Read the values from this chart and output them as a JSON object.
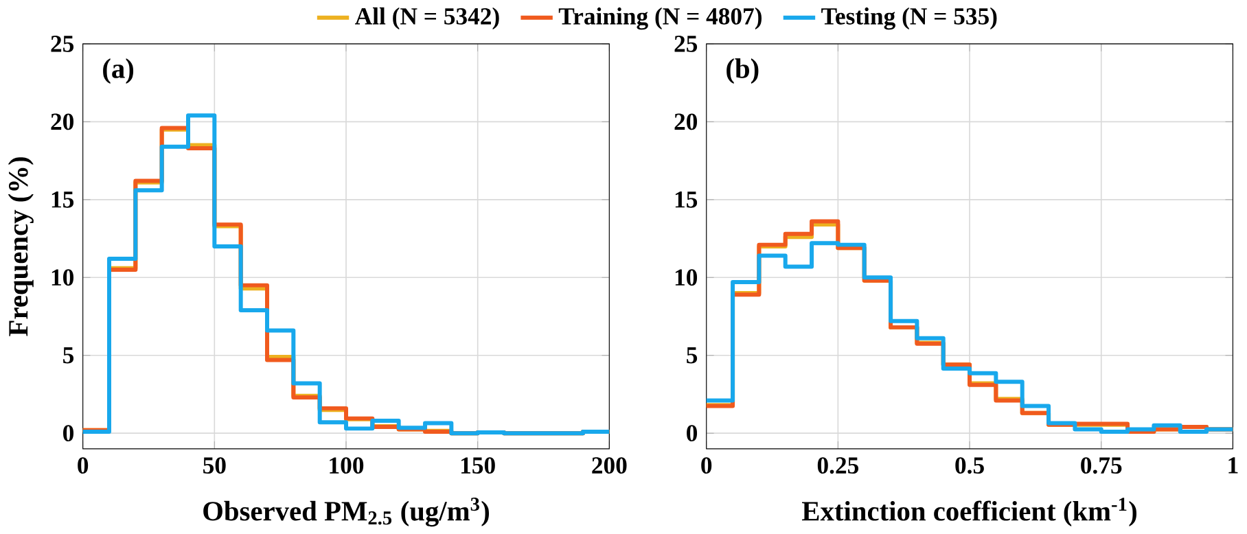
{
  "chart_data": [
    {
      "type": "histogram",
      "xlabel": "Observed PM$_{2.5}$ (ug/m$^{3}$)",
      "ylabel": "Frequency  (%)",
      "annotations": [
        "(a)"
      ],
      "bins": [
        0,
        10,
        20,
        30,
        40,
        50,
        60,
        70,
        80,
        90,
        100,
        110,
        120,
        130,
        140,
        150,
        160,
        170,
        180,
        190,
        200
      ],
      "series": [
        {
          "name": "All  (N = 5342)",
          "color": "#edb120",
          "values": [
            0.2,
            10.6,
            16.1,
            19.5,
            18.5,
            13.3,
            9.3,
            4.9,
            2.4,
            1.5,
            0.9,
            0.45,
            0.25,
            0.15,
            0,
            0.05,
            0,
            0,
            0,
            0.1
          ]
        },
        {
          "name": "Training  (N = 4807)",
          "color": "#f05a1e",
          "values": [
            0.2,
            10.5,
            16.2,
            19.6,
            18.3,
            13.4,
            9.5,
            4.7,
            2.3,
            1.6,
            0.95,
            0.4,
            0.25,
            0.1,
            0,
            0.05,
            0,
            0,
            0,
            0.1
          ]
        },
        {
          "name": "Testing  (N = 535)",
          "color": "#18a8ec",
          "values": [
            0.1,
            11.2,
            15.6,
            18.4,
            20.4,
            12.0,
            7.9,
            6.6,
            3.2,
            0.7,
            0.3,
            0.8,
            0.35,
            0.65,
            0,
            0.05,
            0,
            0,
            0,
            0.1
          ]
        }
      ],
      "xlim": [
        0,
        200
      ],
      "xticks": [
        0,
        50,
        100,
        150,
        200
      ],
      "ylim": [
        -1,
        25
      ],
      "yticks": [
        0,
        5,
        10,
        15,
        20,
        25
      ],
      "grid": true,
      "legend": "top"
    },
    {
      "type": "histogram",
      "xlabel": "Extinction coefficient (km$^{-1}$)",
      "annotations": [
        "(b)"
      ],
      "bins": [
        0,
        0.05,
        0.1,
        0.15,
        0.2,
        0.25,
        0.3,
        0.35,
        0.4,
        0.45,
        0.5,
        0.55,
        0.6,
        0.65,
        0.7,
        0.75,
        0.8,
        0.85,
        0.9,
        0.95,
        1
      ],
      "series": [
        {
          "color": "#edb120",
          "values": [
            1.8,
            9.0,
            12.0,
            12.6,
            13.4,
            11.9,
            9.8,
            6.8,
            5.8,
            4.4,
            3.2,
            2.2,
            1.3,
            0.55,
            0.55,
            0.55,
            0.1,
            0.25,
            0.4,
            0.25
          ]
        },
        {
          "color": "#f05a1e",
          "values": [
            1.75,
            8.9,
            12.1,
            12.8,
            13.6,
            11.9,
            9.8,
            6.8,
            5.75,
            4.4,
            3.1,
            2.1,
            1.3,
            0.55,
            0.6,
            0.6,
            0.1,
            0.25,
            0.4,
            0.25
          ]
        },
        {
          "color": "#18a8ec",
          "values": [
            2.1,
            9.7,
            11.4,
            10.7,
            12.2,
            12.1,
            10.0,
            7.2,
            6.1,
            4.15,
            3.85,
            3.3,
            1.75,
            0.65,
            0.25,
            0.1,
            0.25,
            0.5,
            0.1,
            0.25
          ]
        }
      ],
      "xlim": [
        0,
        1
      ],
      "xticks": [
        0,
        0.25,
        0.5,
        0.75,
        1
      ],
      "ylim": [
        -1,
        25
      ],
      "yticks": [
        0,
        5,
        10,
        15,
        20,
        25
      ],
      "grid": true
    }
  ]
}
